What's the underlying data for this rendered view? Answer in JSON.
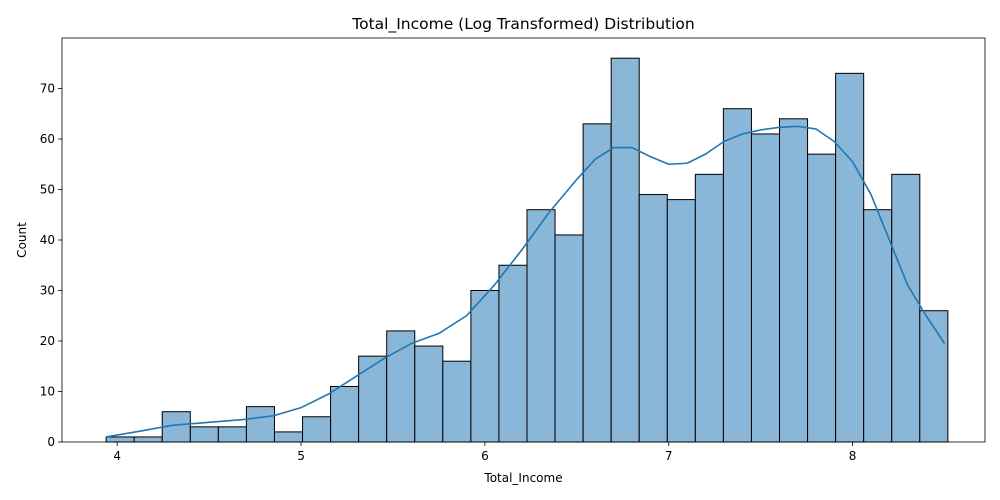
{
  "chart_data": {
    "type": "bar",
    "subtype": "histogram_with_kde",
    "title": "Total_Income (Log Transformed) Distribution",
    "xlabel": "Total_Income",
    "ylabel": "Count",
    "xlim": [
      3.7,
      8.72
    ],
    "ylim": [
      0,
      80
    ],
    "xticks": [
      4,
      5,
      6,
      7,
      8
    ],
    "yticks": [
      0,
      10,
      20,
      30,
      40,
      50,
      60,
      70
    ],
    "bin_start": 3.94,
    "bin_width": 0.1526,
    "counts": [
      1,
      1,
      6,
      3,
      3,
      7,
      2,
      5,
      11,
      17,
      22,
      19,
      16,
      30,
      35,
      46,
      41,
      63,
      76,
      49,
      48,
      53,
      66,
      61,
      64,
      57,
      73,
      46,
      53,
      26
    ],
    "kde": {
      "x": [
        3.94,
        4.1,
        4.3,
        4.5,
        4.7,
        4.85,
        5.0,
        5.15,
        5.3,
        5.45,
        5.6,
        5.75,
        5.9,
        6.05,
        6.2,
        6.35,
        6.5,
        6.6,
        6.7,
        6.8,
        6.9,
        7.0,
        7.1,
        7.2,
        7.3,
        7.4,
        7.5,
        7.6,
        7.7,
        7.8,
        7.9,
        8.0,
        8.1,
        8.2,
        8.3,
        8.4,
        8.5
      ],
      "y": [
        1.0,
        2.0,
        3.3,
        3.9,
        4.5,
        5.2,
        6.8,
        9.5,
        13.0,
        16.5,
        19.5,
        21.5,
        25.0,
        31.0,
        38.0,
        45.5,
        52.0,
        56.0,
        58.3,
        58.3,
        56.5,
        55.0,
        55.2,
        57.0,
        59.5,
        61.0,
        61.8,
        62.3,
        62.5,
        62.0,
        59.5,
        55.5,
        49.0,
        40.0,
        31.0,
        25.0,
        19.5
      ]
    },
    "colors": {
      "bar_fill": "#8ab6d8",
      "bar_edge": "#000000",
      "kde_line": "#1f77b4"
    }
  }
}
